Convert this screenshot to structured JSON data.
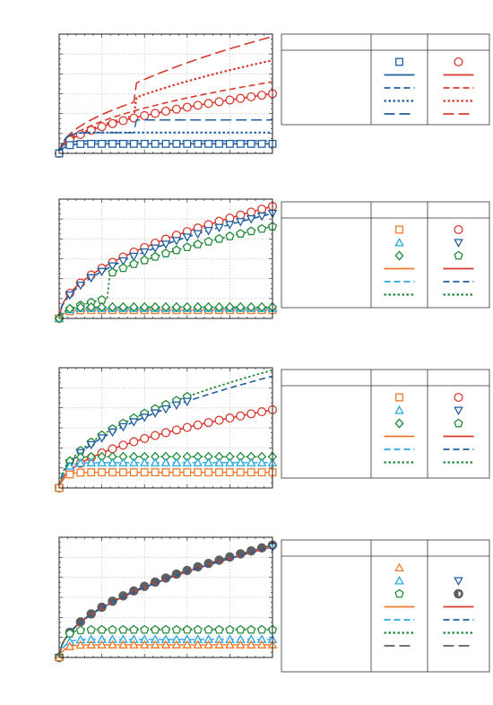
{
  "colors": {
    "blue": "#1f5fa0",
    "red": "#d83a2f",
    "orange": "#f07a2a",
    "cyan": "#25a6dd",
    "green": "#238a3a",
    "gray": "#5f5f5f",
    "grid": "#c8c8c8"
  },
  "chart_data": [
    {
      "type": "line",
      "title": "",
      "xlabel": "",
      "ylabel": "",
      "xlim": [
        0,
        10
      ],
      "ylim": [
        0,
        10
      ],
      "grid": true,
      "x_ticks": 5,
      "y_ticks": 6,
      "series": [
        {
          "color": "red",
          "dash": "dash-long",
          "width": 1.6,
          "marker": "none",
          "shape": "sqrt",
          "scale": 9.8,
          "start": 0,
          "step_at": 3.6,
          "step_to": 0.74
        },
        {
          "color": "red",
          "dash": "dot",
          "width": 2.2,
          "marker": "none",
          "shape": "sqrt",
          "scale": 7.8,
          "start": 0,
          "step_at": 3.6,
          "step_to": 0.68
        },
        {
          "color": "red",
          "dash": "dash",
          "width": 1.6,
          "marker": "none",
          "shape": "sqrt",
          "scale": 6.0,
          "start": 0
        },
        {
          "color": "red",
          "dash": "solid",
          "width": 1.6,
          "marker": "circle",
          "shape": "sqrt",
          "scale": 5.0,
          "start": 0
        },
        {
          "color": "blue",
          "dash": "dash-long",
          "width": 1.4,
          "marker": "none",
          "shape": "sat",
          "scale": 2.8,
          "start": 0,
          "step_at": 3.6,
          "step_to": 0.62
        },
        {
          "color": "blue",
          "dash": "dot",
          "width": 2.0,
          "marker": "none",
          "shape": "sat",
          "scale": 1.75,
          "start": 0
        },
        {
          "color": "blue",
          "dash": "dash",
          "width": 1.4,
          "marker": "none",
          "shape": "sat",
          "scale": 1.05,
          "start": 0
        },
        {
          "color": "blue",
          "dash": "solid",
          "width": 1.6,
          "marker": "square",
          "shape": "sat",
          "scale": 0.8,
          "start": 0
        }
      ],
      "legend": {
        "rows": [
          [
            {
              "color": "blue",
              "marker": "square"
            },
            {
              "color": "red",
              "marker": "circle"
            }
          ],
          [
            {
              "color": "blue",
              "dash": "solid"
            },
            {
              "color": "red",
              "dash": "solid"
            }
          ],
          [
            {
              "color": "blue",
              "dash": "dash"
            },
            {
              "color": "red",
              "dash": "dash"
            }
          ],
          [
            {
              "color": "blue",
              "dash": "dot"
            },
            {
              "color": "red",
              "dash": "dot"
            }
          ],
          [
            {
              "color": "blue",
              "dash": "dash-long"
            },
            {
              "color": "red",
              "dash": "dash-long"
            }
          ]
        ]
      }
    },
    {
      "type": "line",
      "title": "",
      "xlabel": "",
      "ylabel": "",
      "xlim": [
        0,
        10
      ],
      "ylim": [
        0,
        10
      ],
      "grid": true,
      "x_ticks": 5,
      "y_ticks": 6,
      "series": [
        {
          "color": "red",
          "dash": "solid",
          "width": 1.6,
          "marker": "circle",
          "shape": "sqrt",
          "scale": 9.4,
          "start": 0
        },
        {
          "color": "blue",
          "dash": "dash",
          "width": 1.6,
          "marker": "triangle-down",
          "shape": "sqrt",
          "scale": 8.8,
          "start": 0
        },
        {
          "color": "green",
          "dash": "dot",
          "width": 1.6,
          "marker": "pentagon",
          "shape": "sqrt",
          "scale": 7.7,
          "start": 0,
          "step_at": 2.3,
          "step_to": 0.45
        },
        {
          "color": "orange",
          "dash": "solid",
          "width": 1.4,
          "marker": "square",
          "shape": "sat",
          "scale": 0.7,
          "start": 0
        },
        {
          "color": "cyan",
          "dash": "dash",
          "width": 1.4,
          "marker": "triangle",
          "shape": "sat",
          "scale": 0.85,
          "start": 0
        },
        {
          "color": "green",
          "dash": "dot",
          "width": 1.4,
          "marker": "diamond",
          "shape": "sat",
          "scale": 0.95,
          "start": 0
        }
      ],
      "legend": {
        "rows": [
          [
            {
              "color": "orange",
              "marker": "square"
            },
            {
              "color": "red",
              "marker": "circle"
            }
          ],
          [
            {
              "color": "cyan",
              "marker": "triangle"
            },
            {
              "color": "blue",
              "marker": "triangle-down"
            }
          ],
          [
            {
              "color": "green",
              "marker": "diamond"
            },
            {
              "color": "green",
              "marker": "pentagon"
            }
          ],
          [
            {
              "color": "orange",
              "dash": "solid"
            },
            {
              "color": "red",
              "dash": "solid"
            }
          ],
          [
            {
              "color": "cyan",
              "dash": "dash"
            },
            {
              "color": "blue",
              "dash": "dash"
            }
          ],
          [
            {
              "color": "green",
              "dash": "dot"
            },
            {
              "color": "green",
              "dash": "dot"
            }
          ]
        ]
      }
    },
    {
      "type": "line",
      "title": "",
      "xlabel": "",
      "ylabel": "",
      "xlim": [
        0,
        10
      ],
      "ylim": [
        0,
        10
      ],
      "grid": true,
      "x_ticks": 5,
      "y_ticks": 6,
      "series": [
        {
          "color": "green",
          "dash": "dot",
          "width": 1.8,
          "marker": "pentagon",
          "shape": "sqrt",
          "scale": 9.8,
          "start": 0,
          "marker_until": 6.3
        },
        {
          "color": "blue",
          "dash": "dash",
          "width": 1.6,
          "marker": "triangle-down",
          "shape": "sqrt",
          "scale": 9.3,
          "start": 0,
          "marker_until": 6.3
        },
        {
          "color": "red",
          "dash": "solid",
          "width": 1.6,
          "marker": "circle",
          "shape": "sqrt",
          "scale": 6.5,
          "start": 0
        },
        {
          "color": "green",
          "dash": "dot",
          "width": 1.4,
          "marker": "diamond",
          "shape": "sat",
          "scale": 2.6,
          "start": 0
        },
        {
          "color": "cyan",
          "dash": "dash",
          "width": 1.4,
          "marker": "triangle",
          "shape": "sat",
          "scale": 2.1,
          "start": 0
        },
        {
          "color": "orange",
          "dash": "solid",
          "width": 1.4,
          "marker": "square",
          "shape": "sat",
          "scale": 1.3,
          "start": 0
        }
      ],
      "legend": {
        "rows": [
          [
            {
              "color": "orange",
              "marker": "square"
            },
            {
              "color": "red",
              "marker": "circle"
            }
          ],
          [
            {
              "color": "cyan",
              "marker": "triangle"
            },
            {
              "color": "blue",
              "marker": "triangle-down"
            }
          ],
          [
            {
              "color": "green",
              "marker": "diamond"
            },
            {
              "color": "green",
              "marker": "pentagon"
            }
          ],
          [
            {
              "color": "orange",
              "dash": "solid"
            },
            {
              "color": "red",
              "dash": "solid"
            }
          ],
          [
            {
              "color": "cyan",
              "dash": "dash"
            },
            {
              "color": "blue",
              "dash": "dash"
            }
          ],
          [
            {
              "color": "green",
              "dash": "dot"
            },
            {
              "color": "green",
              "dash": "dot"
            }
          ]
        ]
      }
    },
    {
      "type": "line",
      "title": "",
      "xlabel": "",
      "ylabel": "",
      "xlim": [
        0,
        10
      ],
      "ylim": [
        0,
        10
      ],
      "grid": true,
      "x_ticks": 5,
      "y_ticks": 6,
      "series": [
        {
          "color": "gray",
          "dash": "dash-long",
          "width": 1.6,
          "marker": "gray-dot",
          "shape": "sqrt",
          "scale": 9.35,
          "start": 0
        },
        {
          "color": "red",
          "dash": "solid",
          "width": 1.6,
          "marker": "none",
          "shape": "sqrt",
          "scale": 9.2,
          "start": 0
        },
        {
          "color": "blue",
          "dash": "dash",
          "width": 1.6,
          "marker": "none",
          "shape": "sqrt",
          "scale": 9.2,
          "start": 0,
          "end_marker": "triangle-down"
        },
        {
          "color": "green",
          "dash": "dot",
          "width": 1.4,
          "marker": "pentagon",
          "shape": "sat",
          "scale": 2.3,
          "start": 0
        },
        {
          "color": "cyan",
          "dash": "dash",
          "width": 1.4,
          "marker": "triangle",
          "shape": "sat",
          "scale": 1.5,
          "start": 0
        },
        {
          "color": "orange",
          "dash": "solid",
          "width": 1.4,
          "marker": "triangle",
          "shape": "sat",
          "scale": 1.05,
          "start": 0
        }
      ],
      "legend": {
        "rows": [
          [
            {
              "color": "orange",
              "marker": "triangle"
            },
            {
              "blank": true
            }
          ],
          [
            {
              "color": "cyan",
              "marker": "triangle"
            },
            {
              "color": "blue",
              "marker": "triangle-down"
            }
          ],
          [
            {
              "color": "green",
              "marker": "pentagon"
            },
            {
              "color": "gray",
              "marker": "half-circle"
            }
          ],
          [
            {
              "color": "orange",
              "dash": "solid"
            },
            {
              "color": "red",
              "dash": "solid"
            }
          ],
          [
            {
              "color": "cyan",
              "dash": "dash"
            },
            {
              "color": "blue",
              "dash": "dash"
            }
          ],
          [
            {
              "color": "green",
              "dash": "dot"
            },
            {
              "color": "green",
              "dash": "dot"
            }
          ],
          [
            {
              "color": "gray",
              "dash": "dash-long"
            },
            {
              "color": "gray",
              "dash": "dash-long"
            }
          ]
        ]
      }
    }
  ]
}
